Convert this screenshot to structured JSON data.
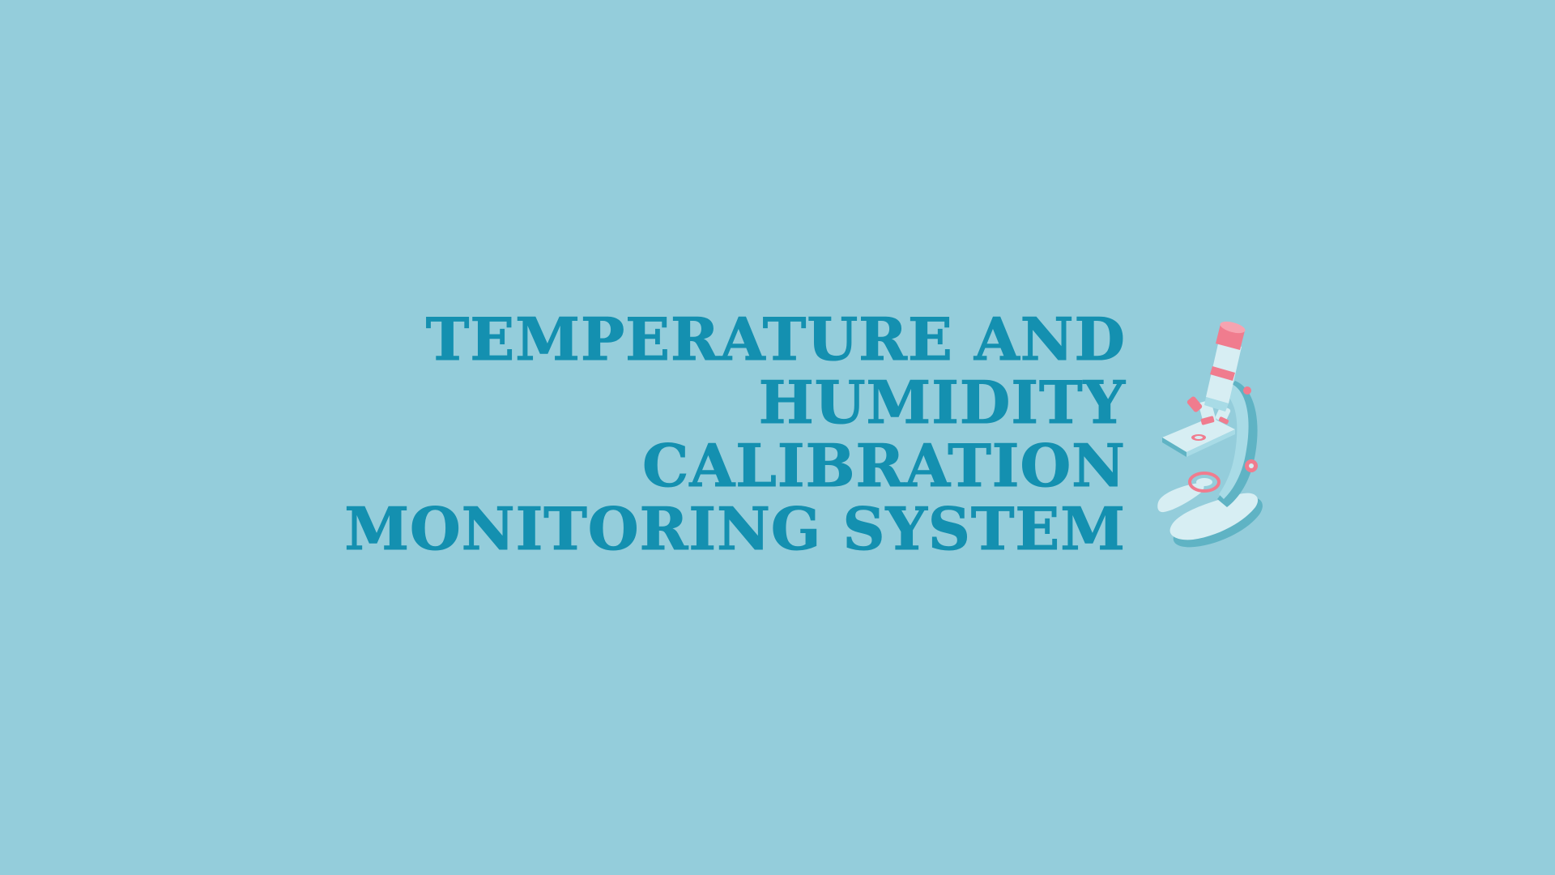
{
  "title": {
    "lines": [
      "TEMPERATURE AND",
      "HUMIDITY",
      "CALIBRATION",
      "MONITORING SYSTEM"
    ]
  },
  "illustration": {
    "icon": "microscope-icon"
  },
  "colors": {
    "background": "#94cddb",
    "title_text": "#1490b0",
    "microscope_body": "#d7eef3",
    "microscope_shadow": "#5fb3c4",
    "accent_pink": "#f07c8e"
  }
}
